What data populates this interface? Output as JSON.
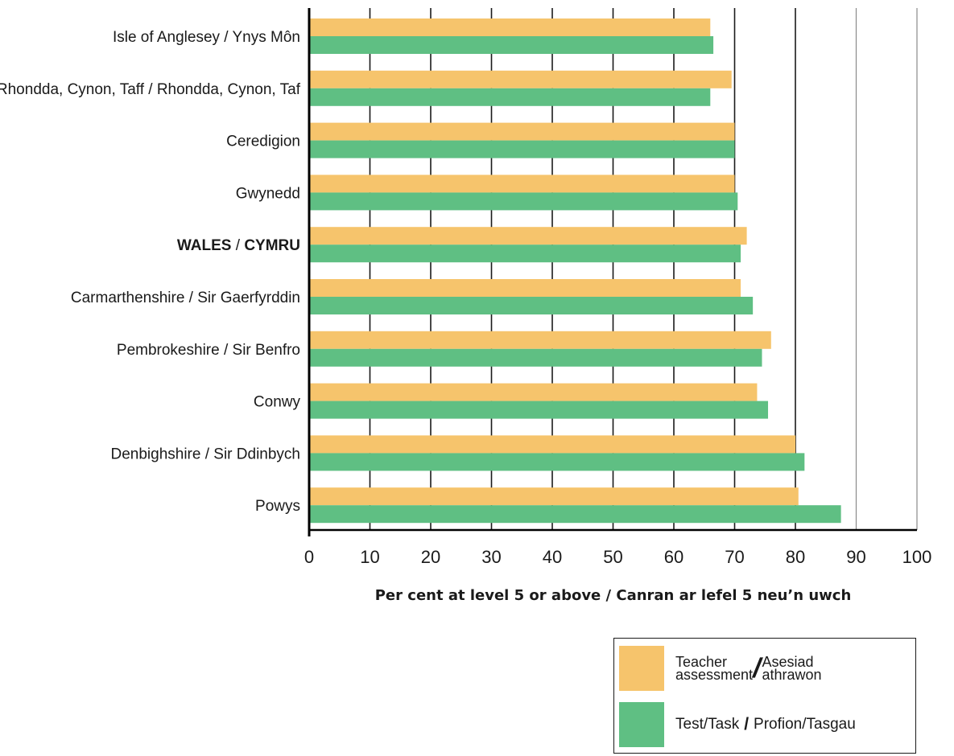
{
  "chart_data": {
    "type": "bar",
    "orientation": "horizontal",
    "categories": [
      "Isle of Anglesey / Ynys Môn",
      "Rhondda, Cynon, Taff / Rhondda, Cynon, Taf",
      "Ceredigion",
      "Gwynedd",
      "WALES / CYMRU",
      "Carmarthenshire / Sir Gaerfyrddin",
      "Pembrokeshire / Sir Benfro",
      "Conwy",
      "Denbighshire / Sir Ddinbych",
      "Powys"
    ],
    "series": [
      {
        "name": "Teacher assessment / Asesiad athrawon",
        "name_parts": [
          "Teacher",
          "assessment",
          "Asesiad",
          "athrawon"
        ],
        "color": "#f6c46c",
        "values": [
          66,
          69.5,
          70,
          70,
          72,
          71,
          76,
          73.7,
          80,
          80.5
        ]
      },
      {
        "name": "Test/Task / Profion/Tasgau",
        "name_parts": [
          "Test/Task",
          "Profion/Tasgau"
        ],
        "color": "#5fbf83",
        "values": [
          66.5,
          66,
          70,
          70.5,
          71,
          73,
          74.5,
          75.5,
          81.5,
          87.5
        ]
      }
    ],
    "xlabel": "Per cent at level 5 or above / Canran ar lefel 5 neu’n uwch",
    "xlim": [
      0,
      100
    ],
    "x_ticks": [
      "0",
      "10",
      "20",
      "30",
      "40",
      "50",
      "60",
      "70",
      "80",
      "90",
      "100"
    ],
    "grid": "vertical",
    "legend_position": "bottom-right",
    "highlight_category": "WALES / CYMRU"
  }
}
